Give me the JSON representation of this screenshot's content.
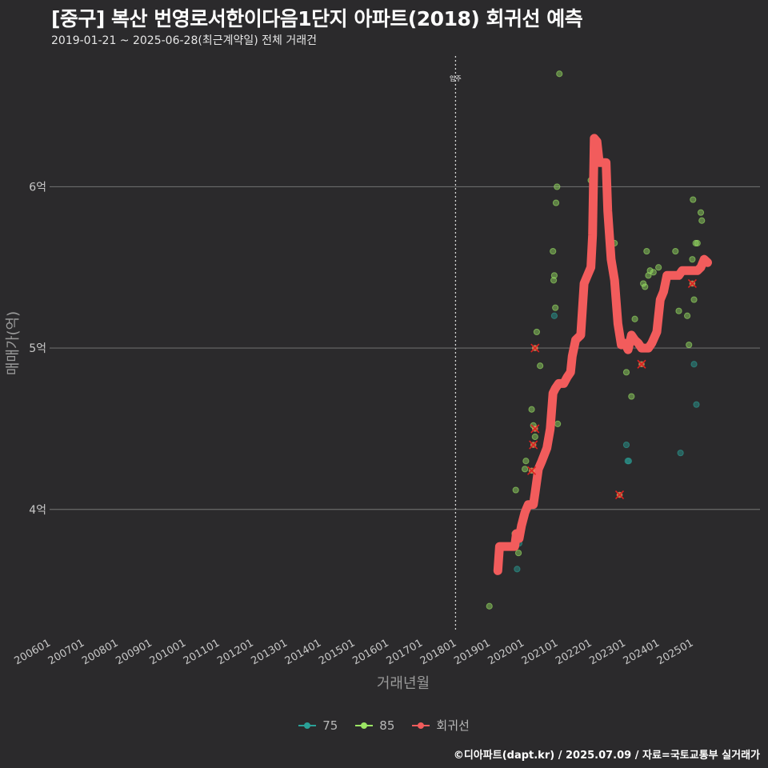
{
  "chart_data": {
    "type": "scatter",
    "title": "[중구] 복산 번영로서한이다음1단지 아파트(2018) 회귀선 예측",
    "subtitle": "2019-01-21 ~ 2025-06-28(최근계약일) 전체 거래건",
    "xlabel": "거래년월",
    "ylabel": "매매가(억)",
    "xlim": [
      2006.0,
      2027.0
    ],
    "ylim": [
      3.25,
      6.85
    ],
    "x_ticks": [
      "200601",
      "200701",
      "200801",
      "200901",
      "201001",
      "201101",
      "201201",
      "201301",
      "201401",
      "201501",
      "201601",
      "201701",
      "201801",
      "201901",
      "202001",
      "202101",
      "202201",
      "202301",
      "202401",
      "202501"
    ],
    "y_ticks": [
      4,
      5,
      6
    ],
    "y_tick_labels": [
      "4억",
      "5억",
      "6억"
    ],
    "vline": {
      "x": 2018.0,
      "label": "입주"
    },
    "colors": {
      "s75": "#2aa198",
      "s85": "#9be564",
      "regression": "#f25c5c",
      "cancelled": "#e02020"
    },
    "series": [
      {
        "name": "75",
        "points": [
          [
            2019.82,
            3.63
          ],
          [
            2019.88,
            3.79
          ],
          [
            2020.95,
            4.74
          ],
          [
            2020.92,
            5.2
          ],
          [
            2023.05,
            4.4
          ],
          [
            2023.09,
            4.3
          ],
          [
            2023.12,
            4.3
          ],
          [
            2024.65,
            4.35
          ],
          [
            2025.05,
            4.9
          ],
          [
            2025.12,
            4.65
          ]
        ]
      },
      {
        "name": "85",
        "points": [
          [
            2019.0,
            3.4
          ],
          [
            2019.78,
            4.12
          ],
          [
            2019.75,
            3.85
          ],
          [
            2019.86,
            3.73
          ],
          [
            2019.92,
            3.9
          ],
          [
            2020.08,
            4.3
          ],
          [
            2020.05,
            4.25
          ],
          [
            2020.25,
            4.62
          ],
          [
            2020.3,
            4.52
          ],
          [
            2020.35,
            4.45
          ],
          [
            2020.4,
            5.1
          ],
          [
            2020.5,
            4.89
          ],
          [
            2020.88,
            5.6
          ],
          [
            2020.9,
            5.42
          ],
          [
            2020.92,
            5.45
          ],
          [
            2020.95,
            5.25
          ],
          [
            2020.97,
            5.9
          ],
          [
            2021.0,
            6.0
          ],
          [
            2021.02,
            4.53
          ],
          [
            2021.07,
            6.7
          ],
          [
            2022.0,
            6.04
          ],
          [
            2022.6,
            5.63
          ],
          [
            2022.7,
            5.65
          ],
          [
            2022.85,
            5.1
          ],
          [
            2023.05,
            4.85
          ],
          [
            2023.2,
            4.7
          ],
          [
            2023.3,
            5.18
          ],
          [
            2023.55,
            5.4
          ],
          [
            2023.6,
            5.38
          ],
          [
            2023.65,
            5.6
          ],
          [
            2023.7,
            5.45
          ],
          [
            2023.75,
            5.48
          ],
          [
            2023.85,
            5.47
          ],
          [
            2024.0,
            5.5
          ],
          [
            2024.5,
            5.6
          ],
          [
            2024.6,
            5.23
          ],
          [
            2024.85,
            5.2
          ],
          [
            2024.9,
            5.02
          ],
          [
            2025.0,
            5.55
          ],
          [
            2025.02,
            5.92
          ],
          [
            2025.05,
            5.3
          ],
          [
            2025.1,
            5.65
          ],
          [
            2025.15,
            5.65
          ],
          [
            2025.25,
            5.84
          ],
          [
            2025.28,
            5.79
          ]
        ]
      },
      {
        "name": "회귀선",
        "points": [
          [
            2019.25,
            3.62
          ],
          [
            2019.3,
            3.77
          ],
          [
            2019.5,
            3.77
          ],
          [
            2019.75,
            3.77
          ],
          [
            2019.8,
            3.85
          ],
          [
            2019.88,
            3.82
          ],
          [
            2019.95,
            3.9
          ],
          [
            2020.05,
            3.98
          ],
          [
            2020.15,
            4.03
          ],
          [
            2020.3,
            4.03
          ],
          [
            2020.35,
            4.1
          ],
          [
            2020.45,
            4.25
          ],
          [
            2020.55,
            4.3
          ],
          [
            2020.7,
            4.38
          ],
          [
            2020.8,
            4.5
          ],
          [
            2020.88,
            4.72
          ],
          [
            2020.95,
            4.75
          ],
          [
            2021.05,
            4.78
          ],
          [
            2021.2,
            4.78
          ],
          [
            2021.3,
            4.82
          ],
          [
            2021.4,
            4.85
          ],
          [
            2021.45,
            4.95
          ],
          [
            2021.55,
            5.05
          ],
          [
            2021.7,
            5.08
          ],
          [
            2021.8,
            5.4
          ],
          [
            2021.9,
            5.45
          ],
          [
            2022.0,
            5.5
          ],
          [
            2022.05,
            5.7
          ],
          [
            2022.1,
            6.3
          ],
          [
            2022.18,
            6.28
          ],
          [
            2022.25,
            6.15
          ],
          [
            2022.35,
            6.15
          ],
          [
            2022.45,
            6.15
          ],
          [
            2022.5,
            5.85
          ],
          [
            2022.6,
            5.55
          ],
          [
            2022.7,
            5.42
          ],
          [
            2022.8,
            5.15
          ],
          [
            2022.9,
            5.02
          ],
          [
            2023.0,
            5.03
          ],
          [
            2023.1,
            4.99
          ],
          [
            2023.2,
            5.08
          ],
          [
            2023.3,
            5.05
          ],
          [
            2023.4,
            5.03
          ],
          [
            2023.5,
            5.0
          ],
          [
            2023.6,
            5.0
          ],
          [
            2023.7,
            5.0
          ],
          [
            2023.8,
            5.03
          ],
          [
            2023.95,
            5.1
          ],
          [
            2024.05,
            5.3
          ],
          [
            2024.15,
            5.35
          ],
          [
            2024.25,
            5.45
          ],
          [
            2024.4,
            5.45
          ],
          [
            2024.5,
            5.45
          ],
          [
            2024.6,
            5.45
          ],
          [
            2024.7,
            5.48
          ],
          [
            2024.85,
            5.48
          ],
          [
            2025.0,
            5.48
          ],
          [
            2025.15,
            5.48
          ],
          [
            2025.25,
            5.5
          ],
          [
            2025.35,
            5.55
          ],
          [
            2025.45,
            5.53
          ]
        ]
      }
    ],
    "cancelled_points": [
      [
        2020.35,
        5.0
      ],
      [
        2020.25,
        4.24
      ],
      [
        2020.3,
        4.4
      ],
      [
        2020.35,
        4.5
      ],
      [
        2022.85,
        4.09
      ],
      [
        2023.5,
        4.9
      ],
      [
        2025.0,
        5.4
      ]
    ],
    "legend": [
      "75",
      "85",
      "회귀선"
    ]
  },
  "footer": {
    "caption": "©디아파트(dapt.kr) / 2025.07.09 / 자료=국토교통부 실거래가"
  }
}
